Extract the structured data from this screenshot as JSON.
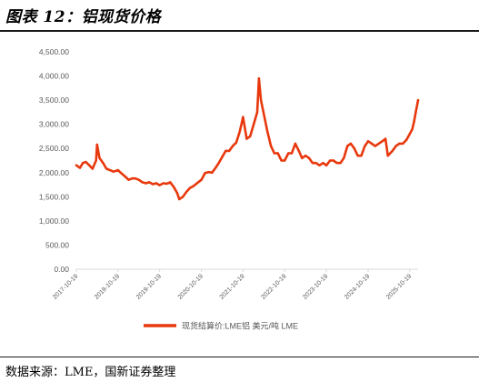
{
  "page": {
    "title": "图表 12：铝现货价格",
    "source": "数据来源：LME，国新证券整理"
  },
  "colors": {
    "series": "#e8380d",
    "axis": "#d9d9d9",
    "text": "#595959"
  },
  "chart_data": {
    "type": "line",
    "title": "",
    "xlabel": "",
    "ylabel": "",
    "grid": false,
    "legend_position": "bottom",
    "ylim": [
      0,
      4500
    ],
    "xlim": [
      "2017-10-19",
      "2025-12-31"
    ],
    "y_ticks": [
      "0.00",
      "500.00",
      "1,000.00",
      "1,500.00",
      "2,000.00",
      "2,500.00",
      "3,000.00",
      "3,500.00",
      "4,000.00",
      "4,500.00"
    ],
    "y_tick_values": [
      0,
      500,
      1000,
      1500,
      2000,
      2500,
      3000,
      3500,
      4000,
      4500
    ],
    "x_ticks": [
      "2017-10-19",
      "2018-10-19",
      "2019-10-19",
      "2020-10-19",
      "2021-10-19",
      "2022-10-19",
      "2023-10-19",
      "2024-10-19",
      "2025-10-19"
    ],
    "series": [
      {
        "name": "现货结算价:LME铝 美元/吨 LME",
        "x": [
          "2017-10-19",
          "2017-11-20",
          "2017-12-15",
          "2018-01-10",
          "2018-02-10",
          "2018-03-10",
          "2018-04-10",
          "2018-04-19",
          "2018-05-10",
          "2018-06-10",
          "2018-07-10",
          "2018-08-10",
          "2018-09-10",
          "2018-10-19",
          "2018-11-20",
          "2018-12-20",
          "2019-01-20",
          "2019-02-20",
          "2019-03-20",
          "2019-04-20",
          "2019-05-20",
          "2019-06-20",
          "2019-07-20",
          "2019-08-20",
          "2019-09-20",
          "2019-10-19",
          "2019-11-20",
          "2019-12-20",
          "2020-01-20",
          "2020-02-20",
          "2020-03-20",
          "2020-04-08",
          "2020-05-10",
          "2020-06-10",
          "2020-07-10",
          "2020-08-10",
          "2020-09-10",
          "2020-10-19",
          "2020-11-20",
          "2020-12-20",
          "2021-01-20",
          "2021-02-20",
          "2021-03-20",
          "2021-04-20",
          "2021-05-20",
          "2021-06-20",
          "2021-07-20",
          "2021-08-20",
          "2021-09-20",
          "2021-10-19",
          "2021-11-20",
          "2021-12-20",
          "2022-01-20",
          "2022-02-20",
          "2022-03-07",
          "2022-03-25",
          "2022-04-20",
          "2022-05-20",
          "2022-06-20",
          "2022-07-20",
          "2022-08-20",
          "2022-09-20",
          "2022-10-19",
          "2022-11-20",
          "2022-12-20",
          "2023-01-20",
          "2023-02-20",
          "2023-03-20",
          "2023-04-20",
          "2023-05-20",
          "2023-06-20",
          "2023-07-20",
          "2023-08-20",
          "2023-09-20",
          "2023-10-19",
          "2023-11-20",
          "2023-12-20",
          "2024-01-20",
          "2024-02-20",
          "2024-03-20",
          "2024-04-20",
          "2024-05-20",
          "2024-06-20",
          "2024-07-20",
          "2024-08-20",
          "2024-09-20",
          "2024-10-19",
          "2024-11-20",
          "2024-12-20",
          "2025-01-20",
          "2025-02-20",
          "2025-03-20",
          "2025-04-10",
          "2025-05-20",
          "2025-06-20",
          "2025-07-20",
          "2025-08-20",
          "2025-09-20",
          "2025-10-19",
          "2025-11-10",
          "2025-11-25",
          "2025-12-10",
          "2025-12-31"
        ],
        "y": [
          2150,
          2100,
          2200,
          2220,
          2150,
          2080,
          2250,
          2580,
          2300,
          2200,
          2080,
          2050,
          2020,
          2050,
          1980,
          1920,
          1850,
          1880,
          1880,
          1850,
          1800,
          1780,
          1800,
          1760,
          1780,
          1740,
          1780,
          1770,
          1800,
          1700,
          1580,
          1450,
          1500,
          1600,
          1680,
          1720,
          1780,
          1850,
          1990,
          2010,
          2000,
          2100,
          2200,
          2330,
          2450,
          2450,
          2550,
          2620,
          2850,
          3150,
          2700,
          2750,
          3000,
          3250,
          3950,
          3500,
          3200,
          2850,
          2550,
          2400,
          2400,
          2250,
          2250,
          2400,
          2400,
          2600,
          2450,
          2300,
          2350,
          2300,
          2200,
          2200,
          2150,
          2200,
          2150,
          2250,
          2250,
          2200,
          2200,
          2300,
          2550,
          2600,
          2500,
          2350,
          2350,
          2550,
          2650,
          2600,
          2550,
          2600,
          2650,
          2700,
          2350,
          2450,
          2550,
          2600,
          2600,
          2680,
          2800,
          2900,
          3050,
          3250,
          3500
        ]
      }
    ]
  }
}
